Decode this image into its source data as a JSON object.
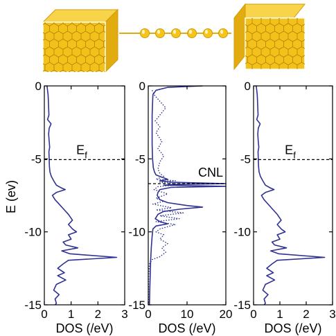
{
  "illustration": {
    "description_icons": [
      "gold-electrode-left",
      "atom-chain",
      "gold-electrode-right"
    ],
    "colors": {
      "gold": "#f2c21b",
      "gold_dark": "#d49a06",
      "hex_line": "#b57f04"
    }
  },
  "chart_data": [
    {
      "type": "line",
      "name": "left-electrode-dos",
      "xlabel": "DOS (/eV)",
      "ylabel": "E (ev)",
      "xlim": [
        0,
        3
      ],
      "ylim": [
        -15,
        0
      ],
      "xticks": [
        "0",
        "1",
        "2",
        "3"
      ],
      "yticks": [
        "0",
        "-5",
        "-10",
        "-15"
      ],
      "annotation": {
        "text": "Ef",
        "main": "E",
        "sub": "f",
        "y": -5.05
      },
      "series": [
        {
          "style": "solid",
          "color": "#2e3192",
          "points": [
            [
              0.1,
              0
            ],
            [
              0.12,
              -0.3
            ],
            [
              0.14,
              -0.6
            ],
            [
              0.15,
              -1.0
            ],
            [
              0.16,
              -1.5
            ],
            [
              0.17,
              -2.0
            ],
            [
              0.12,
              -2.3
            ],
            [
              0.25,
              -2.6
            ],
            [
              0.18,
              -2.9
            ],
            [
              0.16,
              -3.3
            ],
            [
              0.18,
              -3.8
            ],
            [
              0.2,
              -4.2
            ],
            [
              0.17,
              -4.5
            ],
            [
              0.18,
              -5.0
            ],
            [
              0.19,
              -5.5
            ],
            [
              0.21,
              -5.9
            ],
            [
              0.26,
              -6.2
            ],
            [
              0.35,
              -6.5
            ],
            [
              0.45,
              -6.8
            ],
            [
              0.65,
              -7.0
            ],
            [
              0.78,
              -7.1
            ],
            [
              0.45,
              -7.3
            ],
            [
              0.3,
              -7.5
            ],
            [
              0.4,
              -7.8
            ],
            [
              0.55,
              -8.1
            ],
            [
              0.7,
              -8.4
            ],
            [
              0.9,
              -8.8
            ],
            [
              1.05,
              -9.2
            ],
            [
              0.9,
              -9.5
            ],
            [
              1.05,
              -9.8
            ],
            [
              1.2,
              -10.0
            ],
            [
              0.9,
              -10.2
            ],
            [
              1.0,
              -10.5
            ],
            [
              0.7,
              -10.7
            ],
            [
              0.8,
              -10.9
            ],
            [
              1.25,
              -11.1
            ],
            [
              0.65,
              -11.3
            ],
            [
              0.95,
              -11.5
            ],
            [
              2.7,
              -11.75
            ],
            [
              0.9,
              -11.95
            ],
            [
              0.7,
              -12.2
            ],
            [
              0.5,
              -12.5
            ],
            [
              0.75,
              -12.8
            ],
            [
              0.5,
              -13.0
            ],
            [
              0.8,
              -13.3
            ],
            [
              0.45,
              -13.6
            ],
            [
              0.35,
              -14.0
            ],
            [
              0.55,
              -14.3
            ],
            [
              0.4,
              -14.6
            ],
            [
              0.45,
              -14.9
            ],
            [
              0.4,
              -15.0
            ]
          ]
        }
      ]
    },
    {
      "type": "line",
      "name": "chain-dos",
      "xlabel": "DOS (/eV)",
      "ylabel": "",
      "xlim": [
        0,
        20
      ],
      "ylim": [
        -15,
        0
      ],
      "xticks": [
        "0",
        "10",
        "20"
      ],
      "yticks": [
        "0",
        "-5",
        "-10",
        "-15"
      ],
      "annotation": {
        "text": "CNL",
        "y": -6.7
      },
      "series": [
        {
          "style": "solid",
          "color": "#2e3192",
          "points": [
            [
              14.0,
              0
            ],
            [
              5.0,
              -0.1
            ],
            [
              2.0,
              -0.3
            ],
            [
              1.2,
              -0.6
            ],
            [
              1.1,
              -1.2
            ],
            [
              1.0,
              -2.0
            ],
            [
              1.0,
              -3.0
            ],
            [
              1.0,
              -4.0
            ],
            [
              1.1,
              -5.0
            ],
            [
              1.3,
              -5.6
            ],
            [
              1.6,
              -5.9
            ],
            [
              2.0,
              -6.1
            ],
            [
              3.5,
              -6.25
            ],
            [
              5.0,
              -6.4
            ],
            [
              3.0,
              -6.5
            ],
            [
              6.0,
              -6.6
            ],
            [
              20.0,
              -6.7
            ],
            [
              7.0,
              -6.75
            ],
            [
              4.0,
              -6.8
            ],
            [
              20.0,
              -6.88
            ],
            [
              6.0,
              -6.95
            ],
            [
              3.0,
              -7.1
            ],
            [
              2.5,
              -7.3
            ],
            [
              2.3,
              -7.5
            ],
            [
              3.0,
              -7.8
            ],
            [
              5.0,
              -8.0
            ],
            [
              10.0,
              -8.2
            ],
            [
              14.0,
              -8.3
            ],
            [
              8.0,
              -8.45
            ],
            [
              4.0,
              -8.6
            ],
            [
              2.5,
              -8.8
            ],
            [
              1.8,
              -9.1
            ],
            [
              3.0,
              -9.3
            ],
            [
              5.0,
              -9.45
            ],
            [
              2.0,
              -9.6
            ],
            [
              1.2,
              -9.8
            ],
            [
              1.0,
              -10.3
            ],
            [
              0.8,
              -11.0
            ],
            [
              0.6,
              -12.0
            ],
            [
              0.5,
              -13.0
            ],
            [
              0.4,
              -14.0
            ],
            [
              0.3,
              -15.0
            ]
          ]
        },
        {
          "style": "dotted",
          "color": "#2e3192",
          "points": [
            [
              1.0,
              -0.3
            ],
            [
              1.5,
              -0.6
            ],
            [
              2.8,
              -1.0
            ],
            [
              4.5,
              -1.5
            ],
            [
              3.0,
              -2.0
            ],
            [
              1.8,
              -2.4
            ],
            [
              3.0,
              -2.8
            ],
            [
              2.0,
              -3.2
            ],
            [
              3.5,
              -3.8
            ],
            [
              2.5,
              -4.3
            ],
            [
              4.0,
              -4.8
            ],
            [
              3.0,
              -5.2
            ],
            [
              2.5,
              -5.7
            ],
            [
              3.0,
              -6.0
            ],
            [
              4.0,
              -6.2
            ],
            [
              2.0,
              -6.4
            ],
            [
              7.0,
              -6.5
            ],
            [
              3.0,
              -6.6
            ],
            [
              9.0,
              -6.75
            ],
            [
              2.5,
              -6.9
            ],
            [
              1.5,
              -7.1
            ],
            [
              5.0,
              -7.4
            ],
            [
              2.0,
              -7.7
            ],
            [
              4.0,
              -7.9
            ],
            [
              1.2,
              -8.1
            ],
            [
              6.0,
              -8.35
            ],
            [
              2.0,
              -8.5
            ],
            [
              9.0,
              -8.7
            ],
            [
              3.0,
              -8.9
            ],
            [
              8.0,
              -9.1
            ],
            [
              2.0,
              -9.3
            ],
            [
              7.0,
              -9.5
            ],
            [
              3.0,
              -9.8
            ],
            [
              2.0,
              -10.0
            ],
            [
              4.0,
              -10.2
            ],
            [
              3.0,
              -10.5
            ],
            [
              5.0,
              -10.8
            ],
            [
              3.5,
              -11.1
            ],
            [
              4.5,
              -11.4
            ],
            [
              3.0,
              -11.7
            ],
            [
              1.0,
              -11.9
            ],
            [
              0.3,
              -12.2
            ],
            [
              0.1,
              -13.0
            ],
            [
              0.05,
              -15.0
            ]
          ]
        }
      ]
    },
    {
      "type": "line",
      "name": "right-electrode-dos",
      "xlabel": "DOS (/eV)",
      "ylabel": "",
      "xlim": [
        0,
        3
      ],
      "ylim": [
        -15,
        0
      ],
      "xticks": [
        "0",
        "1",
        "2",
        "3"
      ],
      "yticks": [
        "0",
        "-5",
        "-10",
        "-15"
      ],
      "annotation": {
        "text": "Ef",
        "main": "E",
        "sub": "f",
        "y": -5.05
      },
      "series": [
        {
          "style": "solid",
          "color": "#2e3192",
          "points": [
            [
              0.1,
              0
            ],
            [
              0.12,
              -0.3
            ],
            [
              0.14,
              -0.6
            ],
            [
              0.15,
              -1.0
            ],
            [
              0.16,
              -1.5
            ],
            [
              0.17,
              -2.0
            ],
            [
              0.12,
              -2.3
            ],
            [
              0.25,
              -2.6
            ],
            [
              0.18,
              -2.9
            ],
            [
              0.16,
              -3.3
            ],
            [
              0.18,
              -3.8
            ],
            [
              0.2,
              -4.2
            ],
            [
              0.17,
              -4.5
            ],
            [
              0.18,
              -5.0
            ],
            [
              0.19,
              -5.5
            ],
            [
              0.21,
              -5.9
            ],
            [
              0.26,
              -6.2
            ],
            [
              0.35,
              -6.5
            ],
            [
              0.45,
              -6.8
            ],
            [
              0.65,
              -7.0
            ],
            [
              0.78,
              -7.1
            ],
            [
              0.45,
              -7.3
            ],
            [
              0.3,
              -7.5
            ],
            [
              0.4,
              -7.8
            ],
            [
              0.55,
              -8.1
            ],
            [
              0.7,
              -8.4
            ],
            [
              0.9,
              -8.8
            ],
            [
              1.05,
              -9.2
            ],
            [
              0.9,
              -9.5
            ],
            [
              1.05,
              -9.8
            ],
            [
              1.2,
              -10.0
            ],
            [
              0.9,
              -10.2
            ],
            [
              1.0,
              -10.5
            ],
            [
              0.7,
              -10.7
            ],
            [
              0.8,
              -10.9
            ],
            [
              1.25,
              -11.1
            ],
            [
              0.65,
              -11.3
            ],
            [
              0.95,
              -11.5
            ],
            [
              2.7,
              -11.75
            ],
            [
              0.9,
              -11.95
            ],
            [
              0.7,
              -12.2
            ],
            [
              0.5,
              -12.5
            ],
            [
              0.75,
              -12.8
            ],
            [
              0.5,
              -13.0
            ],
            [
              0.8,
              -13.3
            ],
            [
              0.45,
              -13.6
            ],
            [
              0.35,
              -14.0
            ],
            [
              0.55,
              -14.3
            ],
            [
              0.4,
              -14.6
            ],
            [
              0.45,
              -14.9
            ],
            [
              0.4,
              -15.0
            ]
          ]
        }
      ]
    }
  ]
}
